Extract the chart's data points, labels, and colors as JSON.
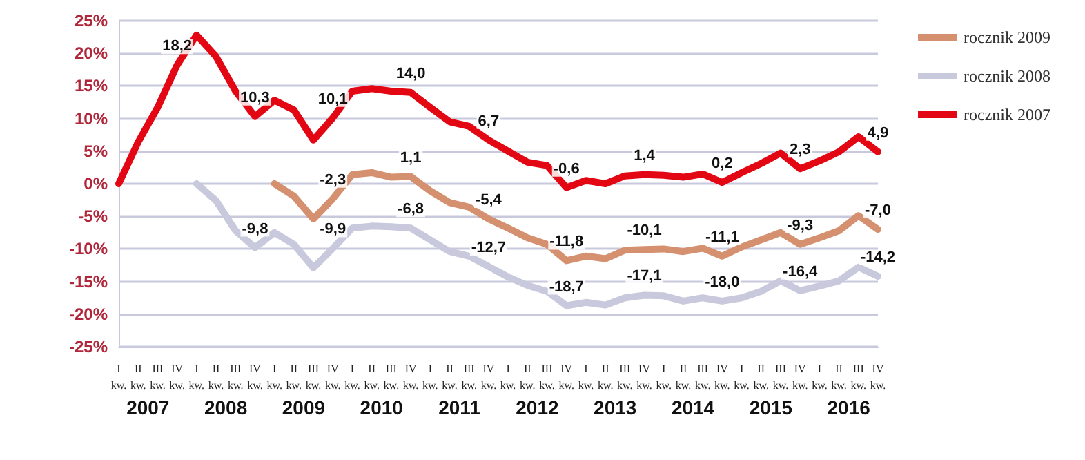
{
  "chart_data": {
    "type": "line",
    "categories": [
      "I kw.",
      "II kw.",
      "III kw.",
      "IV kw.",
      "I kw.",
      "II kw.",
      "III kw.",
      "IV kw.",
      "I kw.",
      "II kw.",
      "III kw.",
      "IV kw.",
      "I kw.",
      "II kw.",
      "III kw.",
      "IV kw.",
      "I kw.",
      "II kw.",
      "III kw.",
      "IV kw.",
      "I kw.",
      "II kw.",
      "III kw.",
      "IV kw.",
      "I kw.",
      "II kw.",
      "III kw.",
      "IV kw.",
      "I kw.",
      "II kw.",
      "III kw.",
      "IV kw.",
      "I kw.",
      "II kw.",
      "III kw.",
      "IV kw.",
      "I kw.",
      "II kw.",
      "III kw.",
      "IV kw."
    ],
    "series": [
      {
        "name": "rocznik 2009",
        "color": "#d4906f",
        "values": [
          null,
          null,
          null,
          null,
          null,
          null,
          null,
          null,
          0,
          -1.9,
          -5.4,
          -2.3,
          1.4,
          1.7,
          1.0,
          1.1,
          -1.1,
          -2.9,
          -3.6,
          -5.4,
          -6.8,
          -8.3,
          -9.3,
          -11.8,
          -11.1,
          -11.5,
          -10.2,
          -10.1,
          -10.0,
          -10.4,
          -9.9,
          -11.1,
          -9.7,
          -8.6,
          -7.5,
          -9.3,
          -8.3,
          -7.2,
          -4.9,
          -7.0
        ],
        "value_labels": [
          null,
          null,
          null,
          null,
          null,
          null,
          null,
          null,
          null,
          null,
          null,
          "-2,3",
          null,
          null,
          null,
          "1,1",
          null,
          null,
          null,
          "-5,4",
          null,
          null,
          null,
          "-11,8",
          null,
          null,
          null,
          "-10,1",
          null,
          null,
          null,
          "-11,1",
          null,
          null,
          null,
          "-9,3",
          null,
          null,
          null,
          "-7,0"
        ]
      },
      {
        "name": "rocznik 2008",
        "color": "#c8c9dc",
        "values": [
          null,
          null,
          null,
          null,
          0,
          -2.6,
          -7.2,
          -9.8,
          -7.5,
          -9.3,
          -12.9,
          -9.9,
          -6.8,
          -6.5,
          -6.6,
          -6.8,
          -8.6,
          -10.4,
          -11.1,
          -12.7,
          -14.3,
          -15.6,
          -16.5,
          -18.7,
          -18.2,
          -18.6,
          -17.5,
          -17.1,
          -17.2,
          -18.0,
          -17.5,
          -18.0,
          -17.5,
          -16.5,
          -14.9,
          -16.4,
          -15.7,
          -14.9,
          -12.8,
          -14.2
        ],
        "value_labels": [
          null,
          null,
          null,
          null,
          null,
          null,
          null,
          "-9,8",
          null,
          null,
          null,
          "-9,9",
          null,
          null,
          null,
          "-6,8",
          null,
          null,
          null,
          "-12,7",
          null,
          null,
          null,
          "-18,7",
          null,
          null,
          null,
          "-17,1",
          null,
          null,
          null,
          "-18,0",
          null,
          null,
          null,
          "-16,4",
          null,
          null,
          null,
          "-14,2"
        ]
      },
      {
        "name": "rocznik 2007",
        "color": "#e30613",
        "values": [
          0,
          6.4,
          11.7,
          18.2,
          22.8,
          19.5,
          14.2,
          10.3,
          12.8,
          11.3,
          6.7,
          10.1,
          14.2,
          14.6,
          14.2,
          14.0,
          11.7,
          9.5,
          8.8,
          6.7,
          5.0,
          3.3,
          2.8,
          -0.6,
          0.5,
          0.0,
          1.2,
          1.4,
          1.3,
          1.0,
          1.5,
          0.2,
          1.7,
          3.1,
          4.7,
          2.3,
          3.5,
          4.9,
          7.2,
          4.9
        ],
        "value_labels": [
          null,
          null,
          null,
          "18,2",
          null,
          null,
          null,
          "10,3",
          null,
          null,
          null,
          "10,1",
          null,
          null,
          null,
          "14,0",
          null,
          null,
          null,
          "6,7",
          null,
          null,
          null,
          "-0,6",
          null,
          null,
          null,
          "1,4",
          null,
          null,
          null,
          "0,2",
          null,
          null,
          null,
          "2,3",
          null,
          null,
          null,
          "4,9"
        ]
      }
    ],
    "ylim": [
      -25,
      25
    ],
    "yticks": [
      {
        "value": -25,
        "label": "-25%"
      },
      {
        "value": -20,
        "label": "-20%"
      },
      {
        "value": -15,
        "label": "-15%"
      },
      {
        "value": -10,
        "label": "-10%"
      },
      {
        "value": -5,
        "label": "-5%"
      },
      {
        "value": 0,
        "label": "0%"
      },
      {
        "value": 5,
        "label": "5%"
      },
      {
        "value": 10,
        "label": "10%"
      },
      {
        "value": 15,
        "label": "15%"
      },
      {
        "value": 20,
        "label": "20%"
      },
      {
        "value": 25,
        "label": "25%"
      }
    ],
    "annotations": [
      "2007",
      "2008",
      "2009",
      "2010",
      "2011",
      "2012",
      "2013",
      "2014",
      "2015",
      "2016"
    ],
    "grid": "y",
    "legend": "top right",
    "marker": "none",
    "line_style": "solid"
  }
}
